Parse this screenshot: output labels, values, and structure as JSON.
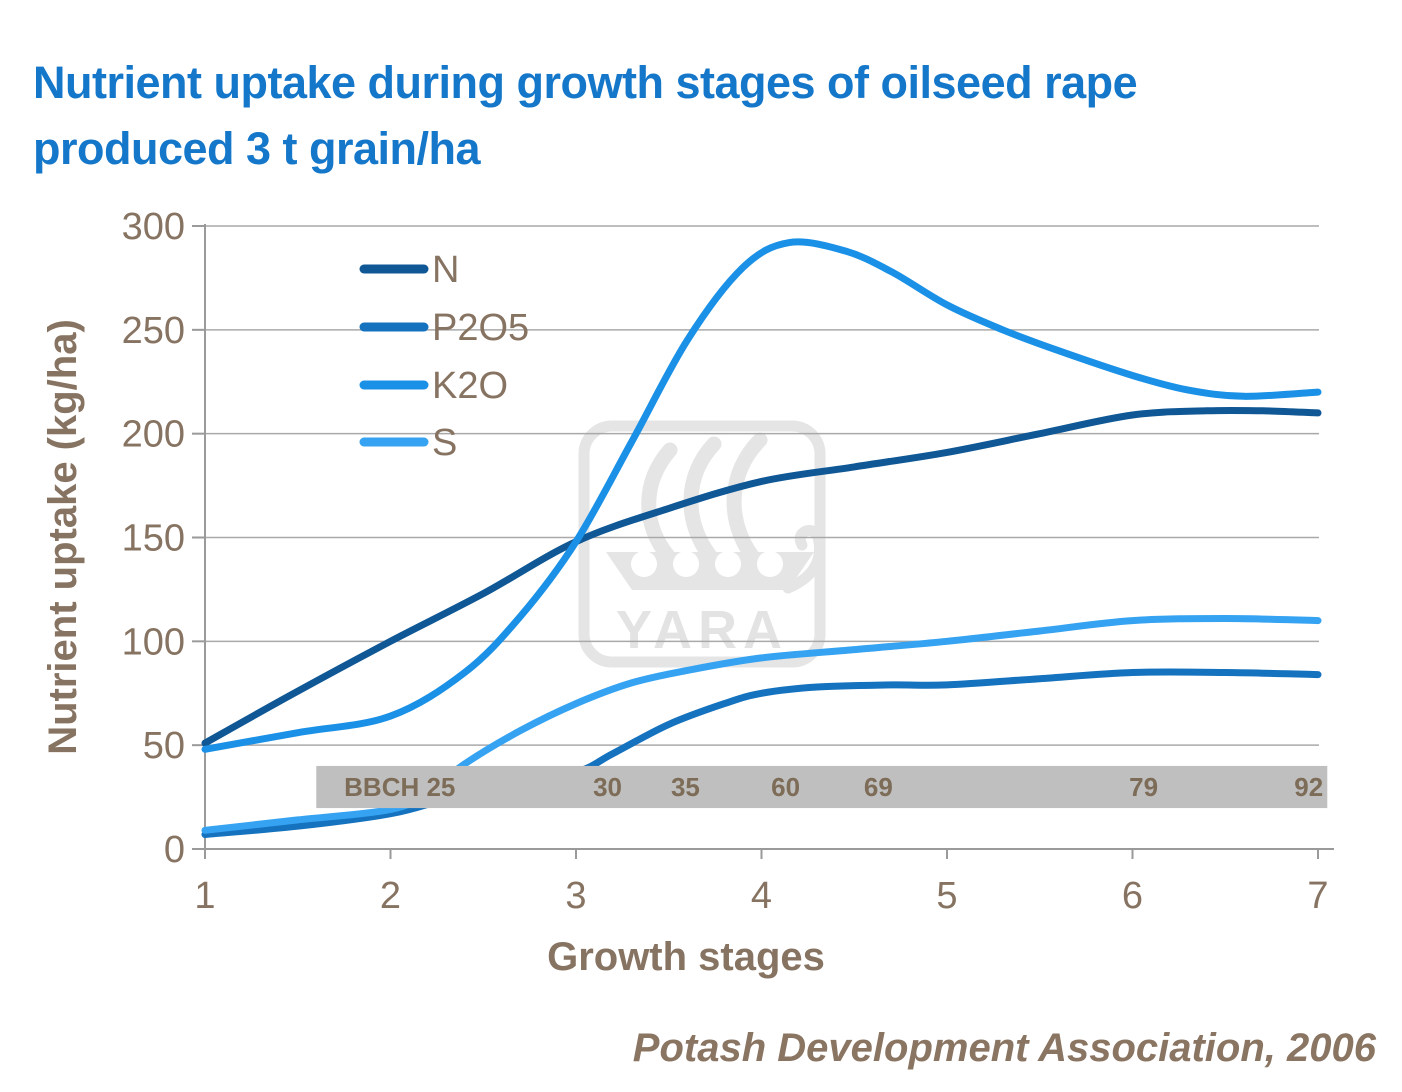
{
  "title": "Nutrient uptake during growth stages of oilseed rape\nproduced 3 t grain/ha",
  "source": "Potash Development Association, 2006",
  "watermark": "YARA",
  "colors": {
    "title_blue": "#1577C9",
    "axis_text_brown": "#877361",
    "band_gray": "#BFBFBF",
    "band_text": "#7D6C57",
    "gridline": "#A9A9A9",
    "axis_line": "#9A9A9A",
    "watermark_gray": "#E5E5E5"
  },
  "chart_data": {
    "type": "line",
    "title": "Nutrient uptake during growth stages of oilseed rape produced 3 t grain/ha",
    "xlabel": "Growth stages",
    "ylabel": "Nutrient uptake (kg/ha)",
    "xlim": [
      1,
      7
    ],
    "ylim": [
      0,
      300
    ],
    "x_ticks": [
      "1",
      "2",
      "3",
      "4",
      "5",
      "6",
      "7"
    ],
    "y_ticks": [
      "0",
      "50",
      "100",
      "150",
      "200",
      "250",
      "300"
    ],
    "grid": "horizontal",
    "legend_position": "upper-left-inside",
    "legend": [
      "N",
      "P2O5",
      "K2O",
      "S"
    ],
    "series": [
      {
        "name": "N",
        "color": "#0F5795",
        "points": [
          [
            1,
            51
          ],
          [
            1.5,
            76
          ],
          [
            2,
            100
          ],
          [
            2.5,
            123
          ],
          [
            3,
            148
          ],
          [
            3.5,
            164
          ],
          [
            4,
            177
          ],
          [
            4.5,
            184
          ],
          [
            5,
            191
          ],
          [
            5.5,
            200
          ],
          [
            6,
            209
          ],
          [
            6.4,
            211
          ],
          [
            6.7,
            211
          ],
          [
            7,
            210
          ]
        ]
      },
      {
        "name": "P2O5",
        "color": "#1572BE",
        "points": [
          [
            1,
            7
          ],
          [
            1.5,
            11
          ],
          [
            2,
            17
          ],
          [
            2.3,
            24
          ],
          [
            2.6,
            30
          ],
          [
            3,
            37
          ],
          [
            3.2,
            46
          ],
          [
            3.5,
            60
          ],
          [
            3.8,
            70
          ],
          [
            4,
            75
          ],
          [
            4.3,
            78
          ],
          [
            4.7,
            79
          ],
          [
            5,
            79
          ],
          [
            5.5,
            82
          ],
          [
            6,
            85
          ],
          [
            6.5,
            85
          ],
          [
            7,
            84
          ]
        ]
      },
      {
        "name": "K2O",
        "color": "#1A91E6",
        "points": [
          [
            1,
            48
          ],
          [
            1.5,
            56
          ],
          [
            2,
            64
          ],
          [
            2.4,
            85
          ],
          [
            2.7,
            112
          ],
          [
            3,
            148
          ],
          [
            3.3,
            196
          ],
          [
            3.6,
            245
          ],
          [
            3.9,
            280
          ],
          [
            4.15,
            292
          ],
          [
            4.45,
            288
          ],
          [
            4.7,
            278
          ],
          [
            5,
            262
          ],
          [
            5.3,
            250
          ],
          [
            5.6,
            240
          ],
          [
            6,
            228
          ],
          [
            6.3,
            221
          ],
          [
            6.6,
            218
          ],
          [
            7,
            220
          ]
        ]
      },
      {
        "name": "S",
        "color": "#35A3F2",
        "points": [
          [
            1,
            9
          ],
          [
            1.5,
            14
          ],
          [
            2,
            19
          ],
          [
            2.2,
            27
          ],
          [
            2.4,
            41
          ],
          [
            2.7,
            57
          ],
          [
            3,
            70
          ],
          [
            3.3,
            80
          ],
          [
            3.6,
            86
          ],
          [
            4,
            92
          ],
          [
            4.5,
            96
          ],
          [
            5,
            100
          ],
          [
            5.5,
            105
          ],
          [
            6,
            110
          ],
          [
            6.5,
            111
          ],
          [
            7,
            110
          ]
        ]
      }
    ],
    "bbch_band": {
      "label_prefix": "BBCH",
      "entries": [
        {
          "bbch": "25",
          "stage": 2.05
        },
        {
          "bbch": "30",
          "stage": 3.17
        },
        {
          "bbch": "35",
          "stage": 3.59
        },
        {
          "bbch": "60",
          "stage": 4.13
        },
        {
          "bbch": "69",
          "stage": 4.63
        },
        {
          "bbch": "79",
          "stage": 6.06
        },
        {
          "bbch": "92",
          "stage": 6.95
        }
      ],
      "stage_range": [
        1.6,
        7.05
      ],
      "value_range": [
        19.7,
        40
      ]
    }
  }
}
